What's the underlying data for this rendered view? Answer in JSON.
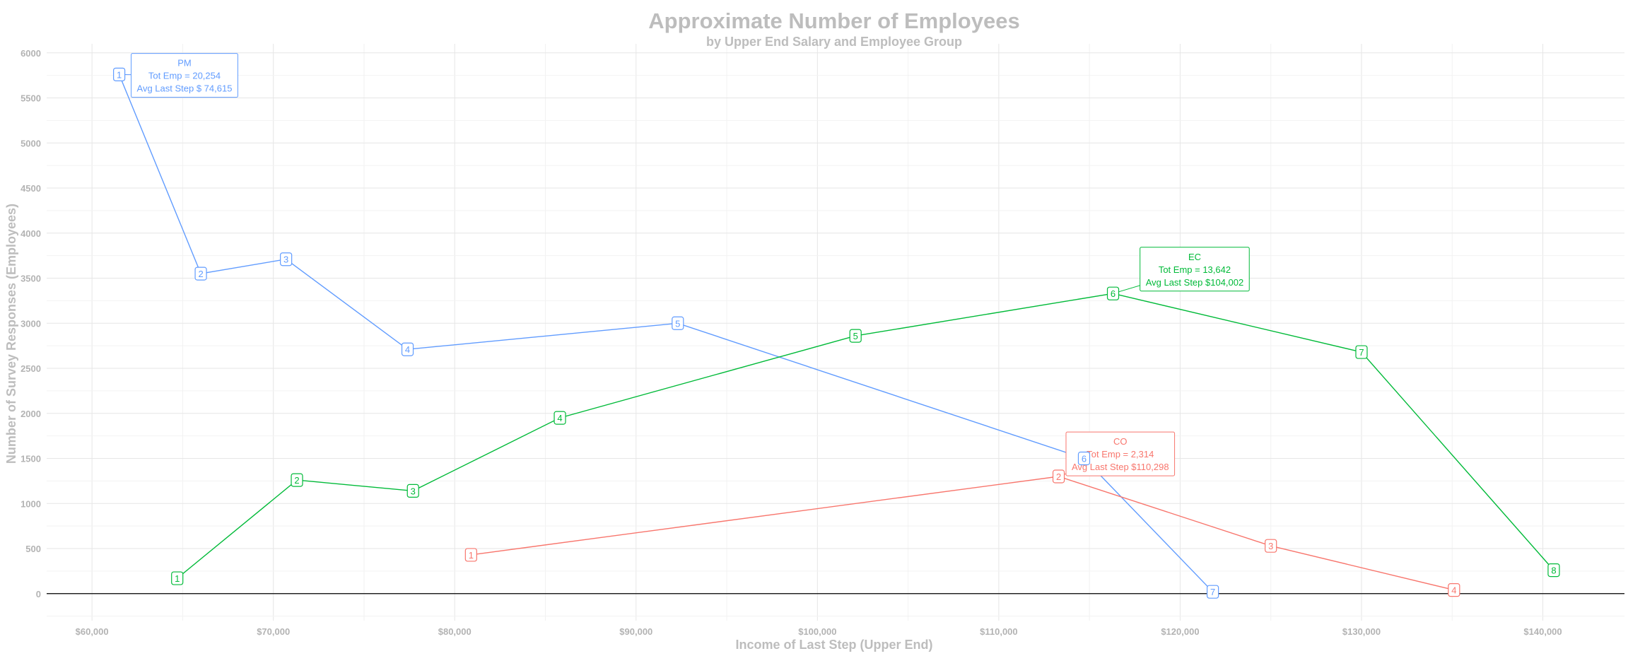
{
  "chart_data": {
    "type": "line",
    "title": "Approximate Number of Employees",
    "subtitle": "by Upper End Salary and Employee Group",
    "xlabel": "Income of Last Step (Upper End)",
    "ylabel": "Number of Survey Responses (Employees)",
    "xlim": [
      57500,
      144500
    ],
    "ylim": [
      -300,
      6100
    ],
    "grid": true,
    "x_ticks": [
      {
        "value": 60000,
        "label": "$60,000"
      },
      {
        "value": 70000,
        "label": "$70,000"
      },
      {
        "value": 80000,
        "label": "$80,000"
      },
      {
        "value": 90000,
        "label": "$90,000"
      },
      {
        "value": 100000,
        "label": "$100,000"
      },
      {
        "value": 110000,
        "label": "$110,000"
      },
      {
        "value": 120000,
        "label": "$120,000"
      },
      {
        "value": 130000,
        "label": "$130,000"
      },
      {
        "value": 140000,
        "label": "$140,000"
      }
    ],
    "y_ticks": [
      {
        "value": 0,
        "label": "0"
      },
      {
        "value": 500,
        "label": "500"
      },
      {
        "value": 1000,
        "label": "1000"
      },
      {
        "value": 1500,
        "label": "1500"
      },
      {
        "value": 2000,
        "label": "2000"
      },
      {
        "value": 2500,
        "label": "2500"
      },
      {
        "value": 3000,
        "label": "3000"
      },
      {
        "value": 3500,
        "label": "3500"
      },
      {
        "value": 4000,
        "label": "4000"
      },
      {
        "value": 4500,
        "label": "4500"
      },
      {
        "value": 5000,
        "label": "5000"
      },
      {
        "value": 5500,
        "label": "5500"
      },
      {
        "value": 6000,
        "label": "6000"
      }
    ],
    "series": [
      {
        "name": "PM",
        "color": "#619cff",
        "points": [
          {
            "x": 61500,
            "y": 5760,
            "label": "1"
          },
          {
            "x": 66000,
            "y": 3550,
            "label": "2"
          },
          {
            "x": 70700,
            "y": 3710,
            "label": "3"
          },
          {
            "x": 77400,
            "y": 2710,
            "label": "4"
          },
          {
            "x": 92300,
            "y": 3000,
            "label": "5"
          },
          {
            "x": 114700,
            "y": 1500,
            "label": "6"
          },
          {
            "x": 121800,
            "y": 20,
            "label": "7"
          }
        ],
        "annotation": {
          "lines": [
            "PM",
            "Tot Emp = 20,254",
            "Avg Last Step $ 74,615"
          ],
          "x": 65100,
          "y": 5750
        }
      },
      {
        "name": "EC",
        "color": "#00ba38",
        "points": [
          {
            "x": 64700,
            "y": 170,
            "label": "1"
          },
          {
            "x": 71300,
            "y": 1260,
            "label": "2"
          },
          {
            "x": 77700,
            "y": 1140,
            "label": "3"
          },
          {
            "x": 85800,
            "y": 1950,
            "label": "4"
          },
          {
            "x": 102100,
            "y": 2860,
            "label": "5"
          },
          {
            "x": 116300,
            "y": 3330,
            "label": "6"
          },
          {
            "x": 130000,
            "y": 2680,
            "label": "7"
          },
          {
            "x": 140600,
            "y": 260,
            "label": "8"
          }
        ],
        "annotation": {
          "lines": [
            "EC",
            "Tot Emp = 13,642",
            "Avg Last Step $104,002"
          ],
          "x": 120800,
          "y": 3600
        }
      },
      {
        "name": "CO",
        "color": "#f8766d",
        "points": [
          {
            "x": 80900,
            "y": 430,
            "label": "1"
          },
          {
            "x": 113300,
            "y": 1300,
            "label": "2"
          },
          {
            "x": 125000,
            "y": 530,
            "label": "3"
          },
          {
            "x": 135100,
            "y": 40,
            "label": "4"
          }
        ],
        "annotation": {
          "lines": [
            "CO",
            "Tot Emp =  2,314",
            "Avg Last Step $110,298"
          ],
          "x": 116700,
          "y": 1550
        }
      }
    ]
  }
}
